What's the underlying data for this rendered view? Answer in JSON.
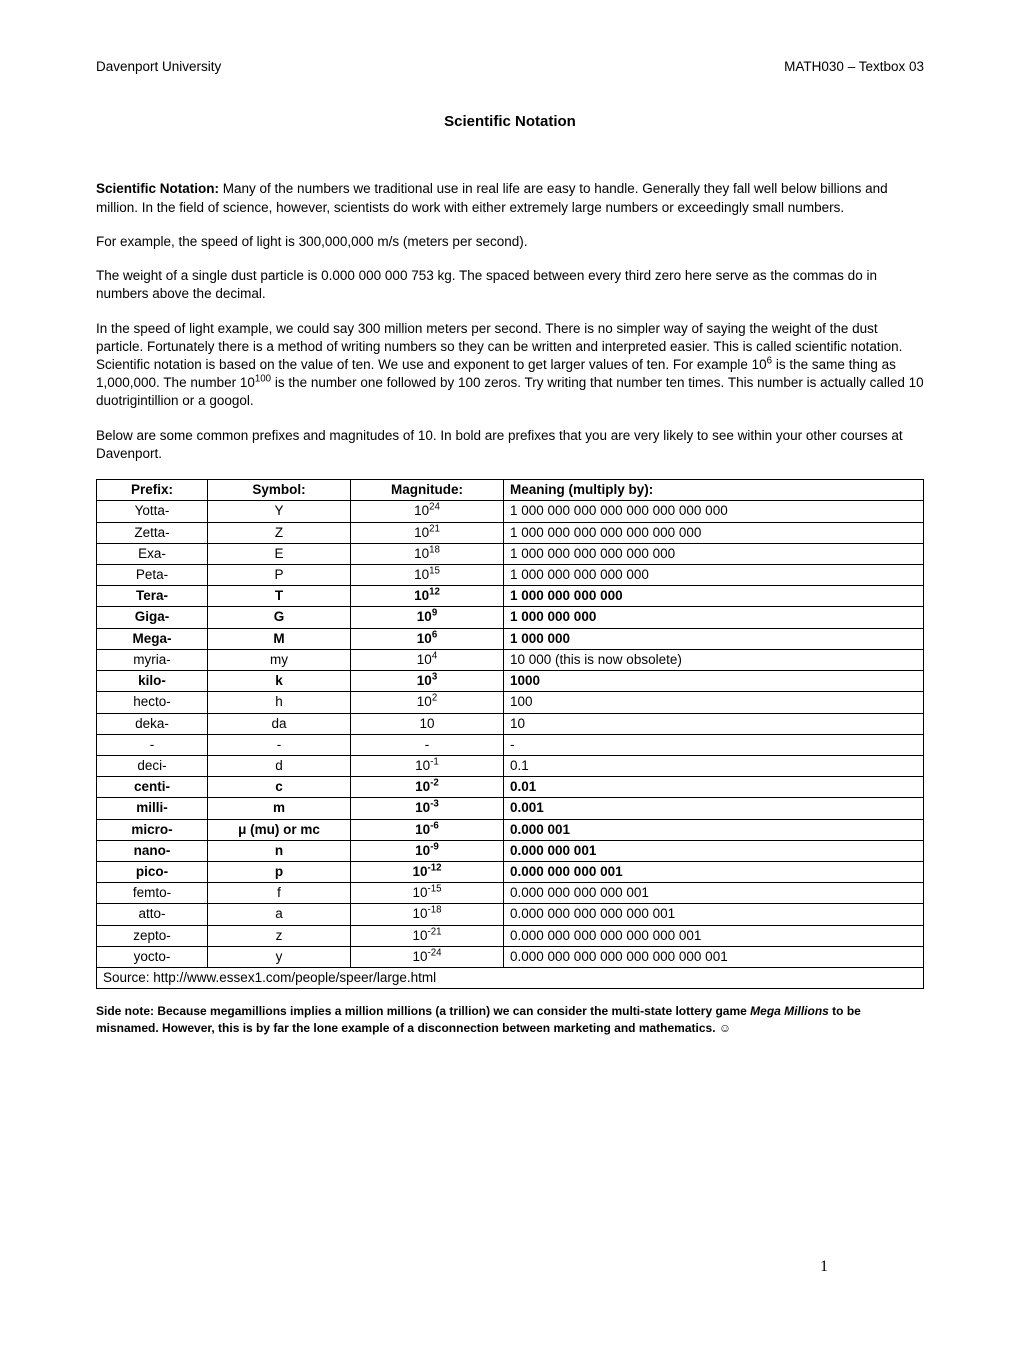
{
  "header": {
    "left": "Davenport University",
    "right": "MATH030 – Textbox 03"
  },
  "title": "Scientific Notation",
  "paragraphs": {
    "intro_label": "Scientific Notation:",
    "intro_rest": " Many of the numbers we traditional use in real life are easy to handle. Generally they fall well below billions and million. In the field of science, however, scientists do work with either extremely large numbers or exceedingly small numbers.",
    "p2": "For example, the speed of light is 300,000,000 m/s (meters per second).",
    "p3": "The weight of a single dust particle is 0.000 000 000 753 kg. The spaced between every third zero here serve as the commas do in numbers above the decimal.",
    "p4_a": "In the speed of light example, we could say 300 million meters per second. There is no simpler way of saying the weight of the dust particle. Fortunately there is a method of writing numbers so they can be written and interpreted easier. This is called scientific notation. Scientific notation is based on the value of ten. We use and exponent to get larger values of ten. For example 10",
    "p4_exp1": "6",
    "p4_b": " is the same thing as 1,000,000. The number 10",
    "p4_exp2": "100",
    "p4_c": " is the number one followed by 100 zeros. Try writing that number ten times. This number is actually called 10 duotrigintillion or a googol.",
    "p5": "Below are some common prefixes and magnitudes of 10. In bold are prefixes that you are very likely to see within your other courses at Davenport."
  },
  "table": {
    "headers": {
      "prefix": "Prefix:",
      "symbol": "Symbol:",
      "magnitude": "Magnitude:",
      "meaning": "Meaning (multiply by):"
    },
    "rows": [
      {
        "prefix": "Yotta-",
        "symbol": "Y",
        "mag_base": "10",
        "mag_exp": "24",
        "meaning": "1 000 000 000 000 000 000 000 000",
        "bold": false
      },
      {
        "prefix": "Zetta-",
        "symbol": "Z",
        "mag_base": "10",
        "mag_exp": "21",
        "meaning": "1 000 000 000 000 000 000 000",
        "bold": false
      },
      {
        "prefix": "Exa-",
        "symbol": "E",
        "mag_base": "10",
        "mag_exp": "18",
        "meaning": "1 000 000 000 000 000 000",
        "bold": false
      },
      {
        "prefix": "Peta-",
        "symbol": "P",
        "mag_base": "10",
        "mag_exp": "15",
        "meaning": "1 000 000 000 000 000",
        "bold": false
      },
      {
        "prefix": "Tera-",
        "symbol": "T",
        "mag_base": "10",
        "mag_exp": "12",
        "meaning": "1 000 000 000 000",
        "bold": true
      },
      {
        "prefix": "Giga-",
        "symbol": "G",
        "mag_base": "10",
        "mag_exp": "9",
        "meaning": "1 000 000 000",
        "bold": true
      },
      {
        "prefix": "Mega-",
        "symbol": "M",
        "mag_base": "10",
        "mag_exp": "6",
        "meaning": "1 000 000",
        "bold": true
      },
      {
        "prefix": "myria-",
        "symbol": "my",
        "mag_base": "10",
        "mag_exp": "4",
        "meaning": "10 000 (this is now obsolete)",
        "bold": false
      },
      {
        "prefix": "kilo-",
        "symbol": "k",
        "mag_base": "10",
        "mag_exp": "3",
        "meaning": "1000",
        "bold": true
      },
      {
        "prefix": "hecto-",
        "symbol": "h",
        "mag_base": "10",
        "mag_exp": "2",
        "meaning": "100",
        "bold": false
      },
      {
        "prefix": "deka-",
        "symbol": "da",
        "mag_base": "10",
        "mag_exp": "",
        "meaning": "10",
        "bold": false
      },
      {
        "prefix": "-",
        "symbol": "-",
        "mag_base": "-",
        "mag_exp": "",
        "meaning": "-",
        "bold": false
      },
      {
        "prefix": "deci-",
        "symbol": "d",
        "mag_base": "10",
        "mag_exp": "-1",
        "meaning": "0.1",
        "bold": false
      },
      {
        "prefix": "centi-",
        "symbol": "c",
        "mag_base": "10",
        "mag_exp": "-2",
        "meaning": "0.01",
        "bold": true
      },
      {
        "prefix": "milli-",
        "symbol": "m",
        "mag_base": "10",
        "mag_exp": "-3",
        "meaning": "0.001",
        "bold": true
      },
      {
        "prefix": "micro-",
        "symbol": "μ (mu) or mc",
        "mag_base": "10",
        "mag_exp": "-6",
        "meaning": "0.000 001",
        "bold": true
      },
      {
        "prefix": "nano-",
        "symbol": "n",
        "mag_base": "10",
        "mag_exp": "-9",
        "meaning": "0.000 000 001",
        "bold": true
      },
      {
        "prefix": "pico-",
        "symbol": "p",
        "mag_base": "10",
        "mag_exp": "-12",
        "meaning": "0.000 000 000 001",
        "bold": true
      },
      {
        "prefix": "femto-",
        "symbol": "f",
        "mag_base": "10",
        "mag_exp": "-15",
        "meaning": "0.000 000 000 000 001",
        "bold": false
      },
      {
        "prefix": "atto-",
        "symbol": "a",
        "mag_base": "10",
        "mag_exp": "-18",
        "meaning": "0.000 000 000 000 000 001",
        "bold": false
      },
      {
        "prefix": "zepto-",
        "symbol": "z",
        "mag_base": "10",
        "mag_exp": "-21",
        "meaning": "0.000 000 000 000 000 000 001",
        "bold": false
      },
      {
        "prefix": "yocto-",
        "symbol": "y",
        "mag_base": "10",
        "mag_exp": "-24",
        "meaning": "0.000 000 000 000 000 000 000 001",
        "bold": false
      }
    ],
    "source": "Source: http://www.essex1.com/people/speer/large.html"
  },
  "sidenote": {
    "a": "Side note: Because megamillions implies a million millions (a trillion) we can consider the multi-state lottery game ",
    "game": "Mega Millions",
    "b": " to be misnamed. However, this is by far the lone example of a disconnection between marketing and mathematics",
    "c": ". ☺"
  },
  "page_number": "1"
}
